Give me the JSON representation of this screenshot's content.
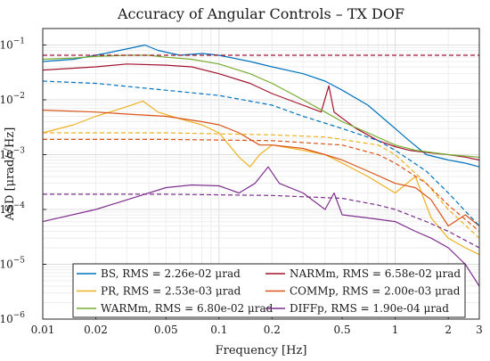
{
  "chart_data": {
    "type": "line",
    "title": "Accuracy of Angular Controls – TX DOF",
    "xlabel": "Frequency [Hz]",
    "ylabel": "ASD [μrad/√Hz]",
    "xscale": "log",
    "yscale": "log",
    "xlim": [
      0.01,
      3
    ],
    "ylim": [
      1e-06,
      0.2
    ],
    "grid": true,
    "legend_position": "bottom",
    "x_ticks": [
      {
        "value": 0.01,
        "label": "0.01"
      },
      {
        "value": 0.02,
        "label": "0.02"
      },
      {
        "value": 0.05,
        "label": "0.05"
      },
      {
        "value": 0.1,
        "label": "0.1"
      },
      {
        "value": 0.2,
        "label": "0.2"
      },
      {
        "value": 0.5,
        "label": "0.5"
      },
      {
        "value": 1,
        "label": "1"
      },
      {
        "value": 2,
        "label": "2"
      },
      {
        "value": 3,
        "label": "3"
      }
    ],
    "y_ticks": [
      {
        "value": 1e-06,
        "base": "10",
        "exp": "−6"
      },
      {
        "value": 1e-05,
        "base": "10",
        "exp": "−5"
      },
      {
        "value": 0.0001,
        "base": "10",
        "exp": "−4"
      },
      {
        "value": 0.001,
        "base": "10",
        "exp": "−3"
      },
      {
        "value": 0.01,
        "base": "10",
        "exp": "−2"
      },
      {
        "value": 0.1,
        "base": "10",
        "exp": "−1"
      }
    ],
    "series": [
      {
        "name": "BS, RMS = 2.26e-02 μrad",
        "color": "#0072bd",
        "style": "solid",
        "points": [
          [
            0.01,
            0.05
          ],
          [
            0.015,
            0.055
          ],
          [
            0.02,
            0.065
          ],
          [
            0.03,
            0.085
          ],
          [
            0.038,
            0.1
          ],
          [
            0.045,
            0.08
          ],
          [
            0.06,
            0.065
          ],
          [
            0.08,
            0.07
          ],
          [
            0.1,
            0.065
          ],
          [
            0.15,
            0.05
          ],
          [
            0.2,
            0.04
          ],
          [
            0.3,
            0.03
          ],
          [
            0.4,
            0.022
          ],
          [
            0.5,
            0.015
          ],
          [
            0.7,
            0.008
          ],
          [
            0.9,
            0.004
          ],
          [
            1.0,
            0.003
          ],
          [
            1.2,
            0.0018
          ],
          [
            1.5,
            0.001
          ],
          [
            2.0,
            0.0008
          ],
          [
            2.5,
            0.0007
          ],
          [
            3.0,
            0.0006
          ]
        ]
      },
      {
        "name": "NARMm, RMS = 6.58e-02 μrad",
        "color": "#a2142f",
        "style": "solid",
        "points": [
          [
            0.01,
            0.035
          ],
          [
            0.02,
            0.04
          ],
          [
            0.03,
            0.045
          ],
          [
            0.05,
            0.043
          ],
          [
            0.07,
            0.04
          ],
          [
            0.1,
            0.03
          ],
          [
            0.15,
            0.02
          ],
          [
            0.2,
            0.013
          ],
          [
            0.3,
            0.008
          ],
          [
            0.38,
            0.006
          ],
          [
            0.42,
            0.018
          ],
          [
            0.45,
            0.006
          ],
          [
            0.6,
            0.003
          ],
          [
            0.8,
            0.0018
          ],
          [
            1.0,
            0.0014
          ],
          [
            1.2,
            0.0012
          ],
          [
            1.5,
            0.0011
          ],
          [
            2.0,
            0.001
          ],
          [
            2.5,
            0.0009
          ],
          [
            3.0,
            0.0008
          ]
        ]
      },
      {
        "name": "PR, RMS = 2.53e-03 μrad",
        "color": "#edb120",
        "style": "solid",
        "points": [
          [
            0.01,
            0.0025
          ],
          [
            0.015,
            0.0035
          ],
          [
            0.02,
            0.005
          ],
          [
            0.03,
            0.0075
          ],
          [
            0.037,
            0.0095
          ],
          [
            0.045,
            0.006
          ],
          [
            0.06,
            0.0045
          ],
          [
            0.08,
            0.0035
          ],
          [
            0.1,
            0.0025
          ],
          [
            0.13,
            0.0009
          ],
          [
            0.15,
            0.0006
          ],
          [
            0.17,
            0.001
          ],
          [
            0.2,
            0.0015
          ],
          [
            0.3,
            0.0012
          ],
          [
            0.4,
            0.001
          ],
          [
            0.5,
            0.0007
          ],
          [
            0.7,
            0.0004
          ],
          [
            1.0,
            0.0002
          ],
          [
            1.3,
            0.0004
          ],
          [
            1.6,
            7e-05
          ],
          [
            2.0,
            3e-05
          ],
          [
            2.5,
            2e-05
          ],
          [
            3.0,
            1.5e-05
          ]
        ]
      },
      {
        "name": "COMMp, RMS = 2.00e-03 μrad",
        "color": "#d95319",
        "style": "solid",
        "points": [
          [
            0.01,
            0.0065
          ],
          [
            0.02,
            0.006
          ],
          [
            0.03,
            0.0055
          ],
          [
            0.05,
            0.005
          ],
          [
            0.08,
            0.004
          ],
          [
            0.1,
            0.0035
          ],
          [
            0.13,
            0.0025
          ],
          [
            0.17,
            0.0015
          ],
          [
            0.2,
            0.0015
          ],
          [
            0.3,
            0.0013
          ],
          [
            0.4,
            0.001
          ],
          [
            0.5,
            0.0008
          ],
          [
            0.7,
            0.0005
          ],
          [
            1.0,
            0.0003
          ],
          [
            1.3,
            0.00025
          ],
          [
            1.6,
            0.00015
          ],
          [
            2.0,
            5e-05
          ],
          [
            2.5,
            8e-05
          ],
          [
            3.0,
            5e-05
          ]
        ]
      },
      {
        "name": "WARMm, RMS = 6.80e-02 μrad",
        "color": "#77ac30",
        "style": "solid",
        "points": [
          [
            0.01,
            0.055
          ],
          [
            0.015,
            0.058
          ],
          [
            0.02,
            0.062
          ],
          [
            0.03,
            0.065
          ],
          [
            0.04,
            0.065
          ],
          [
            0.05,
            0.06
          ],
          [
            0.07,
            0.055
          ],
          [
            0.1,
            0.045
          ],
          [
            0.15,
            0.03
          ],
          [
            0.2,
            0.02
          ],
          [
            0.3,
            0.01
          ],
          [
            0.4,
            0.006
          ],
          [
            0.5,
            0.004
          ],
          [
            0.7,
            0.0025
          ],
          [
            1.0,
            0.0015
          ],
          [
            1.3,
            0.0012
          ],
          [
            2.0,
            0.001
          ],
          [
            3.0,
            0.0009
          ]
        ]
      },
      {
        "name": "DIFFp, RMS = 1.90e-04 μrad",
        "color": "#7e2f8e",
        "style": "solid",
        "points": [
          [
            0.01,
            6e-05
          ],
          [
            0.02,
            0.0001
          ],
          [
            0.03,
            0.00015
          ],
          [
            0.05,
            0.00025
          ],
          [
            0.07,
            0.00028
          ],
          [
            0.1,
            0.00027
          ],
          [
            0.13,
            0.0002
          ],
          [
            0.16,
            0.0003
          ],
          [
            0.19,
            0.0006
          ],
          [
            0.22,
            0.0003
          ],
          [
            0.3,
            0.0002
          ],
          [
            0.4,
            0.0001
          ],
          [
            0.45,
            0.0002
          ],
          [
            0.5,
            8e-05
          ],
          [
            0.7,
            7e-05
          ],
          [
            1.0,
            6e-05
          ],
          [
            1.3,
            4e-05
          ],
          [
            1.6,
            3e-05
          ],
          [
            2.0,
            2e-05
          ],
          [
            2.5,
            1e-05
          ],
          [
            3.0,
            4e-06
          ]
        ]
      },
      {
        "name": "",
        "color": "#a2142f",
        "style": "dashed",
        "points": [
          [
            0.01,
            0.065
          ],
          [
            3.0,
            0.065
          ]
        ]
      },
      {
        "name": "",
        "color": "#0072bd",
        "style": "dashed",
        "points": [
          [
            0.01,
            0.022
          ],
          [
            0.02,
            0.02
          ],
          [
            0.05,
            0.015
          ],
          [
            0.1,
            0.012
          ],
          [
            0.2,
            0.008
          ],
          [
            0.3,
            0.005
          ],
          [
            0.5,
            0.003
          ],
          [
            0.8,
            0.0018
          ],
          [
            1.0,
            0.0012
          ],
          [
            1.5,
            0.0005
          ],
          [
            2.0,
            0.0002
          ],
          [
            3.0,
            5e-05
          ]
        ]
      },
      {
        "name": "",
        "color": "#edb120",
        "style": "dashed",
        "points": [
          [
            0.01,
            0.0025
          ],
          [
            0.05,
            0.0025
          ],
          [
            0.2,
            0.0023
          ],
          [
            0.4,
            0.0021
          ],
          [
            0.8,
            0.0015
          ],
          [
            1.0,
            0.001
          ],
          [
            1.5,
            0.0003
          ],
          [
            2.0,
            0.0001
          ],
          [
            3.0,
            3e-05
          ]
        ]
      },
      {
        "name": "",
        "color": "#d95319",
        "style": "dashed",
        "points": [
          [
            0.01,
            0.0019
          ],
          [
            0.05,
            0.0019
          ],
          [
            0.2,
            0.0018
          ],
          [
            0.5,
            0.0015
          ],
          [
            0.8,
            0.001
          ],
          [
            1.0,
            0.0007
          ],
          [
            1.5,
            0.0003
          ],
          [
            2.0,
            0.00012
          ],
          [
            3.0,
            4e-05
          ]
        ]
      },
      {
        "name": "",
        "color": "#7e2f8e",
        "style": "dashed",
        "points": [
          [
            0.01,
            0.00019
          ],
          [
            0.05,
            0.00019
          ],
          [
            0.2,
            0.00018
          ],
          [
            0.5,
            0.00016
          ],
          [
            0.8,
            0.00012
          ],
          [
            1.0,
            0.0001
          ],
          [
            1.5,
            6e-05
          ],
          [
            2.0,
            4e-05
          ],
          [
            3.0,
            2e-05
          ]
        ]
      }
    ]
  }
}
